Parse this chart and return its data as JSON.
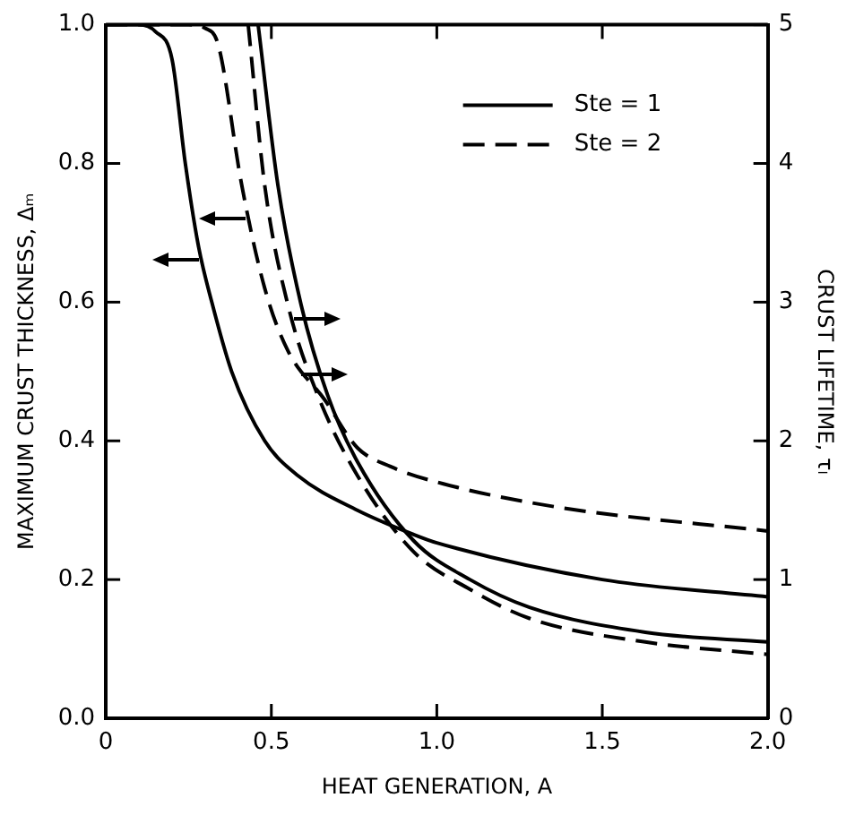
{
  "chart_data": {
    "type": "line",
    "xlabel": "HEAT GENERATION, A",
    "ylabel": "MAXIMUM CRUST THICKNESS, Δₘ",
    "y2label": "CRUST LIFETIME, τₗ",
    "xlim": [
      0,
      2.0
    ],
    "xticks": [
      0,
      {
        "value": 0.5,
        "label": "0.5"
      },
      {
        "value": 1.0,
        "label": "1.0"
      },
      {
        "value": 1.5,
        "label": "1.5"
      },
      {
        "value": 2.0,
        "label": "2.0"
      }
    ],
    "ylim": [
      0,
      1.0
    ],
    "yticks": [
      {
        "value": 0,
        "label": "0.0"
      },
      0.2,
      0.4,
      0.6,
      0.8,
      {
        "value": 1.0,
        "label": "1.0"
      }
    ],
    "y2lim": [
      0,
      5
    ],
    "y2ticks": [
      0,
      1,
      2,
      3,
      4,
      5
    ],
    "grid": false,
    "legend": "top right",
    "marker": "none",
    "series": [
      {
        "name": "Ste = 1",
        "color": "#000000",
        "line_style": "solid",
        "x": [
          0,
          0.1,
          0.15,
          0.2,
          0.24,
          0.28,
          0.32,
          0.38,
          0.48,
          0.58,
          0.76,
          0.93,
          1.0,
          1.5,
          2.0
        ],
        "values": [
          1,
          1,
          0.99,
          0.95,
          0.8,
          0.68,
          0.6,
          0.5,
          0.4,
          0.35,
          0.3,
          0.265,
          0.253,
          0.2,
          0.175
        ]
      },
      {
        "name": "Ste = 2",
        "color": "#000000",
        "line_style": "dashed",
        "x": [
          0,
          0.25,
          0.3,
          0.34,
          0.41,
          0.48,
          0.55,
          0.66,
          0.76,
          0.86,
          1.02,
          1.37,
          2.0
        ],
        "values": [
          1,
          1,
          0.995,
          0.97,
          0.77,
          0.62,
          0.53,
          0.46,
          0.39,
          0.363,
          0.338,
          0.304,
          0.27
        ]
      },
      {
        "color": "#000000",
        "line_style": "solid",
        "axis": "y2",
        "x": [
          0.46,
          0.52,
          0.59,
          0.67,
          0.76,
          0.93,
          1.1,
          1.28,
          1.63,
          2.0
        ],
        "values": [
          5,
          3.84,
          2.98,
          2.33,
          1.85,
          1.28,
          1.0,
          0.8,
          0.62,
          0.55
        ]
      },
      {
        "color": "#000000",
        "line_style": "dashed",
        "axis": "y2",
        "x": [
          0.43,
          0.48,
          0.55,
          0.64,
          0.76,
          0.93,
          1.1,
          1.28,
          1.63,
          2.0
        ],
        "values": [
          5,
          3.84,
          2.98,
          2.33,
          1.75,
          1.2,
          0.93,
          0.72,
          0.55,
          0.46
        ]
      }
    ]
  }
}
